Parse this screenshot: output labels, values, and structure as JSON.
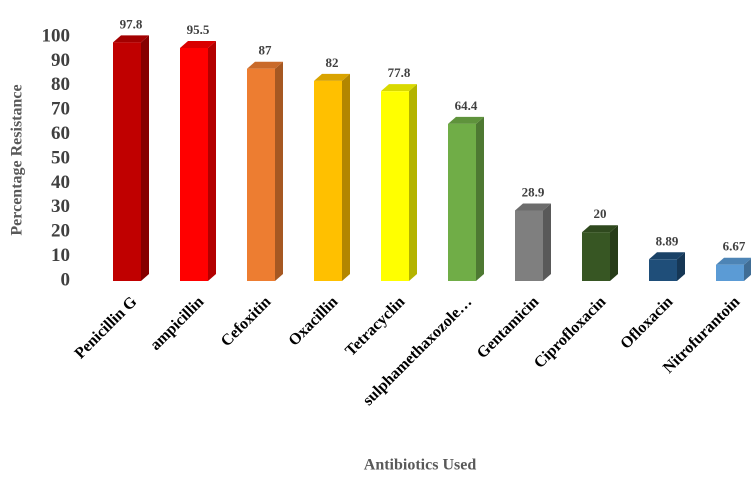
{
  "chart_data": {
    "type": "bar3d",
    "x_label": "Antibiotics Used",
    "y_label": "Percentage Resistance",
    "categories": [
      "Penicillin G",
      "ampicillin",
      "Cefoxitin",
      "Oxacillin",
      "Tetracyclin",
      "sulphamethaxozole…",
      "Gentamicin",
      "Ciprofloxacin",
      "Ofloxacin",
      "Nitrofurantoin"
    ],
    "values": [
      97.8,
      95.5,
      87,
      82,
      77.8,
      64.4,
      28.9,
      20,
      8.89,
      6.67
    ],
    "colors": [
      "#c00000",
      "#ff0000",
      "#ed7d31",
      "#ffc000",
      "#ffff00",
      "#70ad47",
      "#7f7f7f",
      "#375623",
      "#1f4e79",
      "#5b9bd5"
    ],
    "ylim": [
      0,
      100
    ],
    "yticks": [
      0,
      10,
      20,
      30,
      40,
      50,
      60,
      70,
      80,
      90,
      100
    ],
    "grid": false
  }
}
